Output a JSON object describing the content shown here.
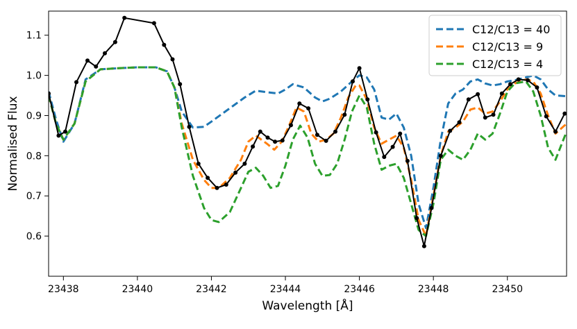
{
  "chart_data": {
    "type": "line",
    "xlabel": "Wavelength [Å]",
    "ylabel": "Normalised Flux",
    "xlim": [
      23437.6,
      23451.6
    ],
    "ylim": [
      0.5,
      1.16
    ],
    "xticks": [
      23438,
      23440,
      23442,
      23444,
      23446,
      23448,
      23450
    ],
    "xtick_labels": [
      "23438",
      "23440",
      "23442",
      "23444",
      "23446",
      "23448",
      "23450"
    ],
    "yticks": [
      0.6,
      0.7,
      0.8,
      0.9,
      1.0,
      1.1
    ],
    "ytick_labels": [
      "0.6",
      "0.7",
      "0.8",
      "0.9",
      "1.0",
      "1.1"
    ],
    "grid": false,
    "legend_position": "top-right",
    "series": [
      {
        "name": "C12/C13 = 40",
        "color": "#1f77b4",
        "style": "dashed",
        "x": [
          23437.6,
          23437.8,
          23438.0,
          23438.3,
          23438.6,
          23439.0,
          23439.5,
          23440.0,
          23440.5,
          23440.8,
          23441.0,
          23441.2,
          23441.5,
          23441.8,
          23442.0,
          23442.3,
          23442.6,
          23442.9,
          23443.2,
          23443.5,
          23443.8,
          23444.0,
          23444.2,
          23444.5,
          23444.8,
          23445.0,
          23445.2,
          23445.5,
          23445.8,
          23446.0,
          23446.2,
          23446.4,
          23446.6,
          23446.8,
          23447.0,
          23447.2,
          23447.4,
          23447.6,
          23447.8,
          23448.0,
          23448.2,
          23448.4,
          23448.6,
          23448.8,
          23449.0,
          23449.2,
          23449.4,
          23449.6,
          23449.8,
          23450.0,
          23450.2,
          23450.5,
          23450.7,
          23450.9,
          23451.1,
          23451.3,
          23451.6
        ],
        "y": [
          0.96,
          0.89,
          0.835,
          0.88,
          0.99,
          1.015,
          1.018,
          1.02,
          1.02,
          1.01,
          0.97,
          0.91,
          0.87,
          0.872,
          0.885,
          0.905,
          0.925,
          0.945,
          0.962,
          0.958,
          0.955,
          0.965,
          0.978,
          0.97,
          0.945,
          0.935,
          0.942,
          0.96,
          0.985,
          1.0,
          0.995,
          0.965,
          0.895,
          0.89,
          0.905,
          0.87,
          0.8,
          0.68,
          0.62,
          0.72,
          0.84,
          0.93,
          0.955,
          0.965,
          0.985,
          0.99,
          0.98,
          0.975,
          0.978,
          0.985,
          0.988,
          0.995,
          1.0,
          0.99,
          0.965,
          0.95,
          0.948
        ]
      },
      {
        "name": "C12/C13 = 9",
        "color": "#ff7f0e",
        "style": "dashed",
        "x": [
          23437.6,
          23437.8,
          23438.0,
          23438.3,
          23438.6,
          23439.0,
          23439.5,
          23440.0,
          23440.5,
          23440.8,
          23441.0,
          23441.2,
          23441.5,
          23441.8,
          23442.0,
          23442.2,
          23442.5,
          23442.8,
          23443.0,
          23443.2,
          23443.5,
          23443.7,
          23443.9,
          23444.1,
          23444.3,
          23444.5,
          23444.7,
          23444.9,
          23445.1,
          23445.3,
          23445.5,
          23445.7,
          23445.9,
          23446.0,
          23446.2,
          23446.4,
          23446.6,
          23446.8,
          23447.0,
          23447.2,
          23447.4,
          23447.6,
          23447.8,
          23448.0,
          23448.2,
          23448.4,
          23448.6,
          23448.8,
          23449.0,
          23449.2,
          23449.4,
          23449.6,
          23449.8,
          23450.0,
          23450.2,
          23450.5,
          23450.7,
          23450.9,
          23451.1,
          23451.3,
          23451.6
        ],
        "y": [
          0.95,
          0.88,
          0.84,
          0.88,
          0.985,
          1.015,
          1.018,
          1.02,
          1.02,
          1.01,
          0.97,
          0.88,
          0.79,
          0.74,
          0.72,
          0.72,
          0.745,
          0.79,
          0.835,
          0.85,
          0.83,
          0.815,
          0.835,
          0.875,
          0.92,
          0.91,
          0.855,
          0.835,
          0.84,
          0.855,
          0.895,
          0.945,
          0.975,
          0.975,
          0.94,
          0.87,
          0.83,
          0.84,
          0.85,
          0.82,
          0.74,
          0.64,
          0.6,
          0.7,
          0.8,
          0.86,
          0.87,
          0.885,
          0.915,
          0.92,
          0.905,
          0.91,
          0.935,
          0.965,
          0.98,
          0.99,
          0.985,
          0.955,
          0.9,
          0.855,
          0.88
        ]
      },
      {
        "name": "C12/C13 = 4",
        "color": "#2ca02c",
        "style": "dashed",
        "x": [
          23437.6,
          23437.8,
          23438.0,
          23438.3,
          23438.6,
          23439.0,
          23439.5,
          23440.0,
          23440.5,
          23440.8,
          23441.0,
          23441.2,
          23441.5,
          23441.8,
          23442.0,
          23442.2,
          23442.5,
          23442.8,
          23443.0,
          23443.2,
          23443.4,
          23443.6,
          23443.8,
          23444.0,
          23444.2,
          23444.4,
          23444.6,
          23444.8,
          23445.0,
          23445.2,
          23445.4,
          23445.6,
          23445.8,
          23446.0,
          23446.2,
          23446.4,
          23446.6,
          23446.8,
          23447.0,
          23447.2,
          23447.4,
          23447.6,
          23447.8,
          23448.0,
          23448.2,
          23448.4,
          23448.6,
          23448.8,
          23449.0,
          23449.2,
          23449.4,
          23449.6,
          23449.8,
          23450.0,
          23450.2,
          23450.5,
          23450.7,
          23450.9,
          23451.1,
          23451.3,
          23451.6
        ],
        "y": [
          0.95,
          0.88,
          0.84,
          0.88,
          0.985,
          1.015,
          1.018,
          1.02,
          1.02,
          1.01,
          0.97,
          0.87,
          0.75,
          0.67,
          0.64,
          0.635,
          0.66,
          0.72,
          0.76,
          0.77,
          0.75,
          0.72,
          0.725,
          0.775,
          0.84,
          0.875,
          0.845,
          0.78,
          0.75,
          0.752,
          0.78,
          0.84,
          0.91,
          0.95,
          0.92,
          0.83,
          0.765,
          0.775,
          0.78,
          0.745,
          0.68,
          0.615,
          0.6,
          0.68,
          0.79,
          0.815,
          0.8,
          0.79,
          0.815,
          0.855,
          0.84,
          0.855,
          0.905,
          0.96,
          0.98,
          0.985,
          0.96,
          0.9,
          0.82,
          0.79,
          0.86
        ]
      },
      {
        "name": "",
        "color": "#000000",
        "style": "solid-markers",
        "x": [
          23437.6,
          23437.87,
          23438.05,
          23438.35,
          23438.65,
          23438.88,
          23439.12,
          23439.4,
          23439.65,
          23440.45,
          23440.72,
          23440.95,
          23441.15,
          23441.4,
          23441.65,
          23441.9,
          23442.15,
          23442.4,
          23442.65,
          23442.9,
          23443.12,
          23443.32,
          23443.52,
          23443.72,
          23443.92,
          23444.15,
          23444.38,
          23444.62,
          23444.86,
          23445.1,
          23445.35,
          23445.6,
          23445.82,
          23446.0,
          23446.22,
          23446.45,
          23446.67,
          23446.9,
          23447.1,
          23447.3,
          23447.55,
          23447.75,
          23447.95,
          23448.2,
          23448.45,
          23448.7,
          23448.95,
          23449.2,
          23449.4,
          23449.62,
          23449.85,
          23450.08,
          23450.3,
          23450.55,
          23450.8,
          23451.05,
          23451.3,
          23451.55
        ],
        "y": [
          0.955,
          0.85,
          0.86,
          0.983,
          1.037,
          1.022,
          1.055,
          1.083,
          1.143,
          1.13,
          1.076,
          1.04,
          0.978,
          0.872,
          0.78,
          0.745,
          0.72,
          0.728,
          0.758,
          0.78,
          0.823,
          0.86,
          0.845,
          0.835,
          0.838,
          0.876,
          0.93,
          0.918,
          0.852,
          0.837,
          0.86,
          0.902,
          0.985,
          1.018,
          0.94,
          0.858,
          0.797,
          0.822,
          0.855,
          0.787,
          0.645,
          0.575,
          0.67,
          0.8,
          0.862,
          0.883,
          0.94,
          0.953,
          0.895,
          0.902,
          0.955,
          0.978,
          0.99,
          0.988,
          0.97,
          0.898,
          0.86,
          0.905
        ]
      }
    ]
  }
}
